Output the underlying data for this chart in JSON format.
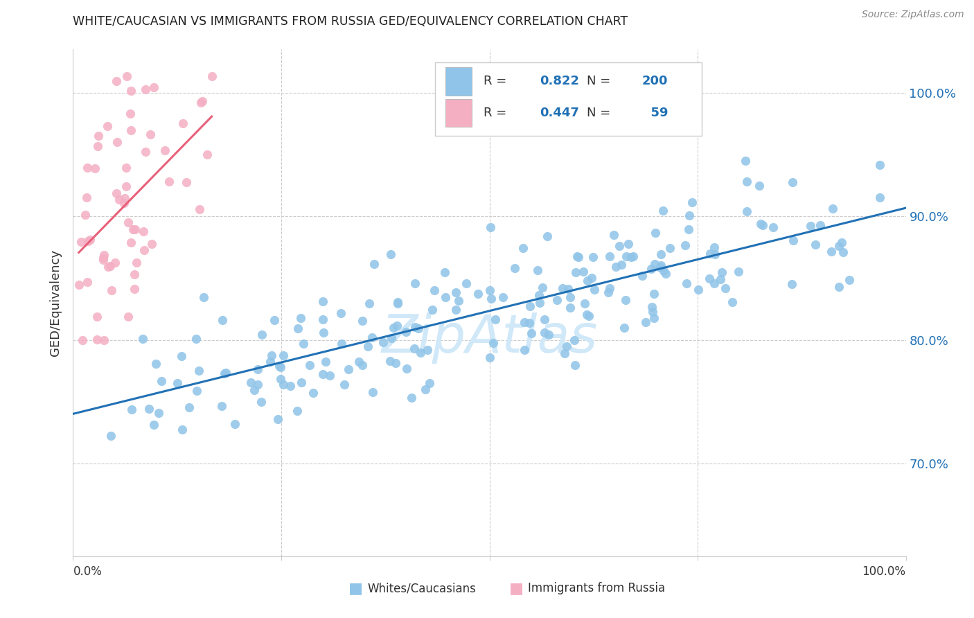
{
  "title": "WHITE/CAUCASIAN VS IMMIGRANTS FROM RUSSIA GED/EQUIVALENCY CORRELATION CHART",
  "source": "Source: ZipAtlas.com",
  "ylabel": "GED/Equivalency",
  "legend_blue_r": "0.822",
  "legend_blue_n": "200",
  "legend_pink_r": "0.447",
  "legend_pink_n": "59",
  "blue_color": "#90c4e8",
  "pink_color": "#f4afc3",
  "blue_line_color": "#2171b5",
  "pink_line_color": "#e8607a",
  "watermark_color": "#d0e8f8",
  "blue_N": 200,
  "pink_N": 59,
  "blue_R": 0.822,
  "pink_R": 0.447,
  "blue_seed": 42,
  "pink_seed": 17,
  "ylim_min": 0.625,
  "ylim_max": 1.035,
  "xlim_min": 0.0,
  "xlim_max": 1.0,
  "right_ytick_vals": [
    0.7,
    0.8,
    0.9,
    1.0
  ],
  "right_ytick_labels": [
    "70.0%",
    "80.0%",
    "90.0%",
    "100.0%"
  ],
  "gridline_color": "#cccccc",
  "hgrid_vals": [
    0.7,
    0.8,
    0.9,
    1.0
  ],
  "vgrid_vals": [
    0.25,
    0.5,
    0.75
  ]
}
